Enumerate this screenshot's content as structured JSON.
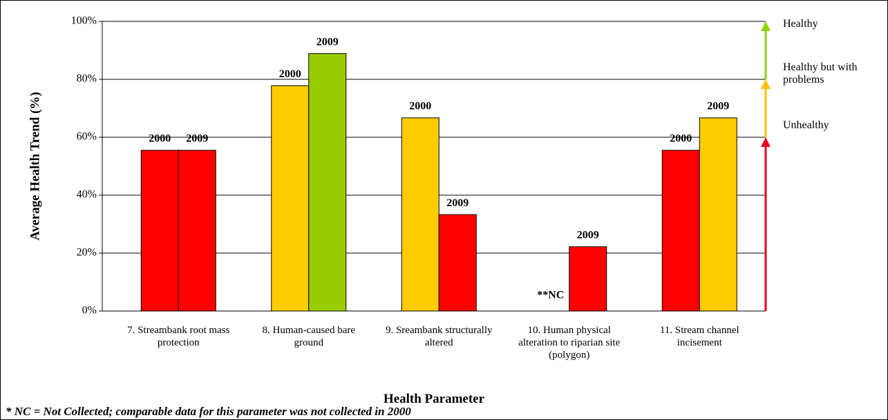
{
  "chart_data": {
    "type": "bar",
    "y_label": "Average Health Trend (%)",
    "x_label": "Health Parameter",
    "categories": [
      "7. Streambank root mass protection",
      "8. Human-caused bare ground",
      "9. Sreambank structurally altered",
      "10. Human physical alteration to riparian site (polygon)",
      "11. Stream channel incisement"
    ],
    "series": [
      {
        "name": "2000",
        "values": [
          55.5,
          77.8,
          66.7,
          null,
          55.5
        ],
        "colors": [
          "#ff0000",
          "#ffcc00",
          "#ffcc00",
          null,
          "#ff0000"
        ]
      },
      {
        "name": "2009",
        "values": [
          55.5,
          88.9,
          33.3,
          22.2,
          66.7
        ],
        "colors": [
          "#ff0000",
          "#99cc00",
          "#ff0000",
          "#ff0000",
          "#ffcc00"
        ]
      }
    ],
    "null_label": "**NC",
    "ylim": [
      0,
      100
    ],
    "yticks": [
      {
        "value": 0,
        "label": "0%"
      },
      {
        "value": 20,
        "label": "20%"
      },
      {
        "value": 40,
        "label": "40%"
      },
      {
        "value": 60,
        "label": "60%"
      },
      {
        "value": 80,
        "label": "80%"
      },
      {
        "value": 100,
        "label": "100%"
      }
    ],
    "grid": true,
    "zones": [
      {
        "label": "Unhealthy",
        "from": 0,
        "to": 60,
        "color": "#e8001c"
      },
      {
        "label": "Healthy but with problems",
        "from": 60,
        "to": 80,
        "color": "#ffc000"
      },
      {
        "label": "Healthy",
        "from": 80,
        "to": 100,
        "color": "#8fd400"
      }
    ],
    "footnote": "* NC = Not Collected; comparable data for this parameter was not collected in 2000"
  }
}
